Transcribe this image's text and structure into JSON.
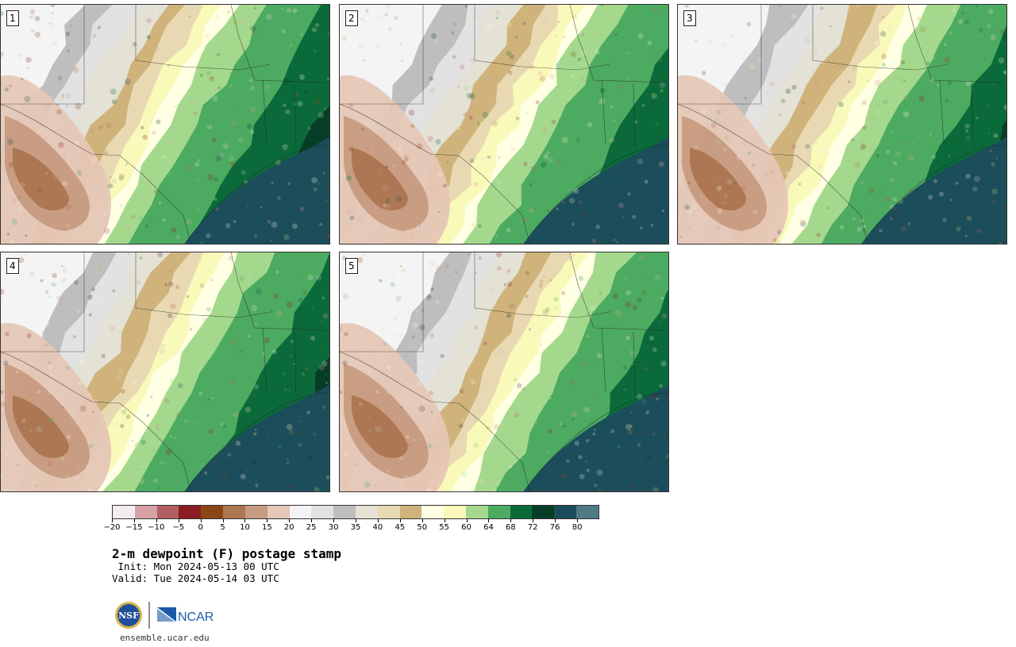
{
  "panels": [
    {
      "number": "1",
      "variant": 0
    },
    {
      "number": "2",
      "variant": 1
    },
    {
      "number": "3",
      "variant": 2
    },
    {
      "number": "4",
      "variant": 3
    },
    {
      "number": "5",
      "variant": 4
    }
  ],
  "colorbar": {
    "colors": [
      "#f4ecec",
      "#d5a2a6",
      "#b25e63",
      "#8b1e25",
      "#8a4716",
      "#ac7752",
      "#c79b80",
      "#e5c7b6",
      "#f4f4f4",
      "#e2e2e2",
      "#bebebe",
      "#e4e1d5",
      "#e8d9b2",
      "#cfb37b",
      "#ffffe4",
      "#f9f9b9",
      "#a4d98d",
      "#4daa61",
      "#0b6a39",
      "#063d26",
      "#1b4d5a",
      "#4e7a84"
    ],
    "tick_labels": [
      "−20",
      "−15",
      "−10",
      "−5",
      "0",
      "5",
      "10",
      "15",
      "20",
      "25",
      "30",
      "35",
      "40",
      "45",
      "50",
      "55",
      "60",
      "64",
      "68",
      "72",
      "76",
      "80"
    ]
  },
  "caption": {
    "title": "2-m dewpoint (F) postage stamp",
    "init": " Init: Mon 2024-05-13 00 UTC",
    "valid": "Valid: Tue 2024-05-14 03 UTC"
  },
  "logos": {
    "nsf_text": "NSF",
    "ncar_text": "NCAR",
    "nsf_color": "#1f4e9a",
    "ncar_color": "#1b5aa6"
  },
  "site": "ensemble.ucar.edu"
}
